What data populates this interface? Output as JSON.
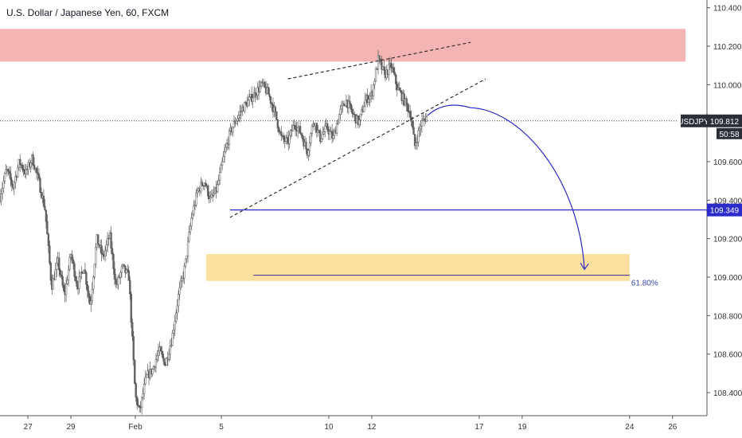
{
  "chart_data": {
    "type": "candlestick",
    "title": "U.S. Dollar / Japanese Yen, 60, FXCM",
    "symbol": "USDJPY",
    "price_axis": {
      "range": [
        108.28,
        110.44
      ],
      "ticks": [
        "110.400",
        "110.200",
        "110.000",
        "109.800",
        "109.600",
        "109.400",
        "109.200",
        "109.000",
        "108.800",
        "108.600",
        "108.400"
      ]
    },
    "time_axis": {
      "labels": [
        "27",
        "29",
        "Feb",
        "5",
        "10",
        "12",
        "17",
        "19",
        "24",
        "26"
      ],
      "label_days": [
        -5,
        -3,
        0,
        4,
        9,
        11,
        16,
        18,
        23,
        25
      ],
      "range": [
        -6.3,
        26.6
      ]
    },
    "last_price": {
      "value": 109.812,
      "label": "109.812",
      "symbol_label": "USDJPY",
      "countdown": "50:58"
    },
    "horizontal_level": {
      "value": 109.349,
      "label": "109.349",
      "from_day": 4.4
    },
    "fib_level": {
      "label": "61.80%",
      "value": 109.01,
      "from_day": 5.5,
      "to_day": 23.0
    },
    "zones": [
      {
        "kind": "supply",
        "color": "#f4b4b4",
        "from_price": 110.12,
        "to_price": 110.29,
        "from_day": -6.3,
        "to_day": 25.6
      },
      {
        "kind": "demand",
        "color": "#fbe0a0",
        "from_price": 108.98,
        "to_price": 109.12,
        "from_day": 3.3,
        "to_day": 23.0
      }
    ],
    "trendlines": [
      {
        "from": [
          4.4,
          109.31
        ],
        "to": [
          16.3,
          110.03
        ],
        "style": "dashed"
      },
      {
        "from": [
          7.1,
          110.03
        ],
        "to": [
          15.6,
          110.22
        ],
        "style": "dashed"
      }
    ],
    "projection": {
      "start": [
        13.6,
        109.84
      ],
      "peak": [
        15.6,
        109.88
      ],
      "end": [
        20.9,
        109.04
      ],
      "color": "#2b2bcc"
    },
    "price_path": [
      [
        -6.3,
        109.42
      ],
      [
        -6.0,
        109.56
      ],
      [
        -5.7,
        109.47
      ],
      [
        -5.4,
        109.6
      ],
      [
        -5.1,
        109.54
      ],
      [
        -4.8,
        109.62
      ],
      [
        -4.5,
        109.5
      ],
      [
        -4.2,
        109.35
      ],
      [
        -3.9,
        108.95
      ],
      [
        -3.6,
        109.08
      ],
      [
        -3.3,
        108.9
      ],
      [
        -3.0,
        109.12
      ],
      [
        -2.7,
        108.95
      ],
      [
        -2.4,
        109.06
      ],
      [
        -2.1,
        108.85
      ],
      [
        -1.8,
        109.2
      ],
      [
        -1.5,
        109.1
      ],
      [
        -1.2,
        109.22
      ],
      [
        -0.9,
        108.95
      ],
      [
        -0.6,
        109.05
      ],
      [
        -0.3,
        109.0
      ],
      [
        0.0,
        108.38
      ],
      [
        0.2,
        108.3
      ],
      [
        0.5,
        108.48
      ],
      [
        0.8,
        108.52
      ],
      [
        1.1,
        108.62
      ],
      [
        1.4,
        108.55
      ],
      [
        1.7,
        108.68
      ],
      [
        2.0,
        108.9
      ],
      [
        2.3,
        109.05
      ],
      [
        2.6,
        109.3
      ],
      [
        2.9,
        109.45
      ],
      [
        3.2,
        109.5
      ],
      [
        3.5,
        109.4
      ],
      [
        3.8,
        109.46
      ],
      [
        4.1,
        109.62
      ],
      [
        4.4,
        109.75
      ],
      [
        4.7,
        109.82
      ],
      [
        5.0,
        109.88
      ],
      [
        5.3,
        109.92
      ],
      [
        5.6,
        109.96
      ],
      [
        5.9,
        110.0
      ],
      [
        6.2,
        109.95
      ],
      [
        6.5,
        109.85
      ],
      [
        6.8,
        109.72
      ],
      [
        7.1,
        109.7
      ],
      [
        7.4,
        109.8
      ],
      [
        7.7,
        109.75
      ],
      [
        8.0,
        109.65
      ],
      [
        8.3,
        109.82
      ],
      [
        8.6,
        109.72
      ],
      [
        8.9,
        109.78
      ],
      [
        9.2,
        109.72
      ],
      [
        9.5,
        109.85
      ],
      [
        9.8,
        109.92
      ],
      [
        10.1,
        109.85
      ],
      [
        10.4,
        109.8
      ],
      [
        10.7,
        109.92
      ],
      [
        11.0,
        109.95
      ],
      [
        11.3,
        110.13
      ],
      [
        11.6,
        110.05
      ],
      [
        11.9,
        110.1
      ],
      [
        12.2,
        109.98
      ],
      [
        12.5,
        109.92
      ],
      [
        12.8,
        109.85
      ],
      [
        13.0,
        109.68
      ],
      [
        13.3,
        109.8
      ],
      [
        13.6,
        109.84
      ]
    ]
  }
}
